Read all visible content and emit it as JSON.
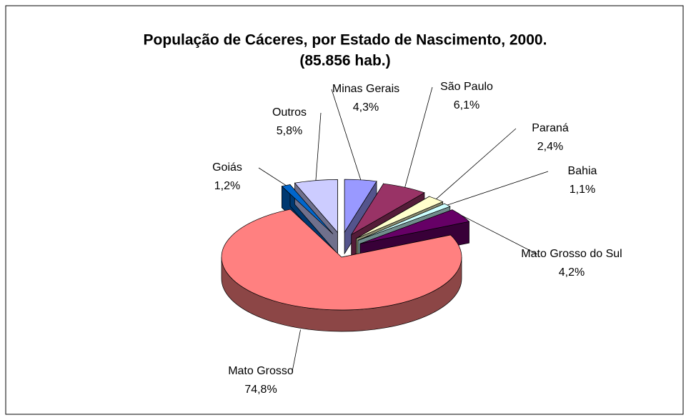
{
  "chart_data": {
    "type": "pie3d",
    "title": "População de Cáceres, por Estado de Nascimento,  2000.",
    "subtitle": "(85.856 hab.)",
    "categories": [
      "Minas Gerais",
      "São Paulo",
      "Paraná",
      "Bahia",
      "Mato Grosso do Sul",
      "Mato Grosso",
      "Goiás",
      "Outros"
    ],
    "values": [
      4.3,
      6.1,
      2.4,
      1.1,
      4.2,
      74.8,
      1.2,
      5.8
    ],
    "value_labels": [
      "4,3%",
      "6,1%",
      "2,4%",
      "1,1%",
      "4,2%",
      "74,8%",
      "1,2%",
      "5,8%"
    ],
    "colors": [
      "#9999ff",
      "#993366",
      "#ffffcc",
      "#ccffff",
      "#660066",
      "#ff8080",
      "#0066cc",
      "#ccccff"
    ]
  }
}
